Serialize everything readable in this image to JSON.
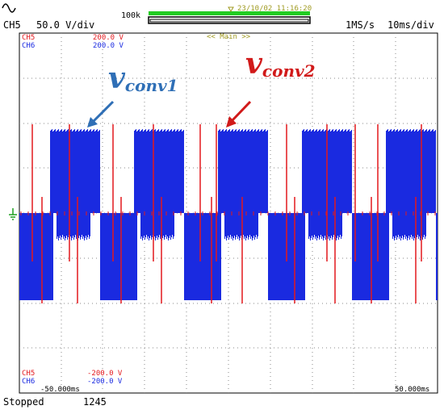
{
  "header": {
    "channel": "CH5",
    "vdiv": "50.0 V/div",
    "memory": "100k",
    "timestamp": "23/10/02 11:16:20",
    "sample_rate": "1MS/s",
    "time_div": "10ms/div",
    "zoom_label": "<< Main >>"
  },
  "channels_top": [
    {
      "name": "CH5",
      "value": "200.0 V"
    },
    {
      "name": "CH6",
      "value": "200.0 V"
    }
  ],
  "channels_bottom": [
    {
      "name": "CH5",
      "value": "-200.0 V"
    },
    {
      "name": "CH6",
      "value": "-200.0 V"
    }
  ],
  "time_left": "-50.000ms",
  "time_right": "50.000ms",
  "status": {
    "state": "Stopped",
    "count": "1245"
  },
  "annotations": {
    "a1": {
      "v": "v",
      "sub": "conv1"
    },
    "a2": {
      "v": "v",
      "sub": "conv2"
    }
  },
  "colors": {
    "ch5": "#e3181d",
    "ch6": "#1a2ae0",
    "annot1": "#2f6fb6",
    "annot2": "#d11a1a",
    "bar": "#22cc22"
  }
}
